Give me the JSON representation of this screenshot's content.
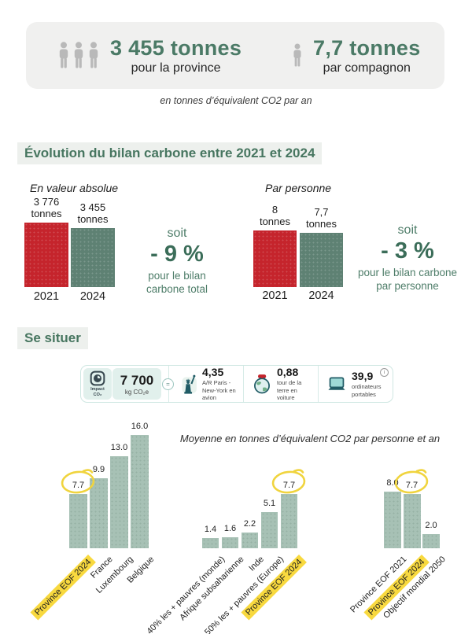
{
  "banner": {
    "province": {
      "icon": "person-group-icon",
      "value": "3 455 tonnes",
      "caption": "pour la province"
    },
    "companion": {
      "icon": "person-icon",
      "value": "7,7 tonnes",
      "caption": "par compagnon"
    }
  },
  "unit_note": "en tonnes d’équivalent CO2 par an",
  "section_titles": {
    "evolution": "Évolution du bilan carbone entre 2021 et 2024",
    "situer": "Se situer"
  },
  "impact_card": {
    "logo": {
      "icon": "impact-co2-logo",
      "lines": [
        "Impact",
        "CO₂"
      ]
    },
    "total": {
      "number": "7 700",
      "unit": "kg CO₂e"
    },
    "equals": "=",
    "items": [
      {
        "icon": "statue-of-liberty-icon",
        "number": "4,35",
        "caption": "A/R Paris - New-York en avion"
      },
      {
        "icon": "earth-car-icon",
        "number": "0,88",
        "caption": "tour de la terre en voiture"
      },
      {
        "icon": "laptop-icon",
        "number": "39,9",
        "caption": "ordinateurs portables"
      }
    ],
    "info_icon": "i"
  },
  "average_note": "Moyenne en tonnes d’équivalent CO2 par personne et an",
  "chart_data": [
    {
      "type": "bar",
      "title": "En valeur absolue",
      "categories": [
        "2021",
        "2024"
      ],
      "values": [
        3776,
        3455
      ],
      "value_labels": [
        [
          "3 776",
          "tonnes"
        ],
        [
          "3 455",
          "tonnes"
        ]
      ],
      "bar_colors": [
        "#c5242c",
        "#5e8173"
      ],
      "annotation": {
        "soit": "soit",
        "pct": "- 9 %",
        "caption": "pour le bilan carbone total"
      }
    },
    {
      "type": "bar",
      "title": "Par personne",
      "categories": [
        "2021",
        "2024"
      ],
      "values": [
        8,
        7.7
      ],
      "value_labels": [
        [
          "8",
          "tonnes"
        ],
        [
          "7,7",
          "tonnes"
        ]
      ],
      "bar_colors": [
        "#c5242c",
        "#5e8173"
      ],
      "annotation": {
        "soit": "soit",
        "pct": "- 3 %",
        "caption": "pour le bilan carbone par personne"
      }
    },
    {
      "type": "bar",
      "categories": [
        "Province EOF 2024",
        "France",
        "Luxembourg",
        "Belgique"
      ],
      "values": [
        7.7,
        9.9,
        13.0,
        16.0
      ],
      "value_labels": [
        "7.7",
        "9.9",
        "13.0",
        "16.0"
      ],
      "bar_color": "#a7c1b5",
      "highlight_index": 0
    },
    {
      "type": "bar",
      "categories": [
        "40% les + pauvres (monde)",
        "Afrique subsaharienne",
        "Inde",
        "50% les + pauvres (Europe)",
        "Province EOF 2024"
      ],
      "values": [
        1.4,
        1.6,
        2.2,
        5.1,
        7.7
      ],
      "value_labels": [
        "1.4",
        "1.6",
        "2.2",
        "5.1",
        "7.7"
      ],
      "bar_color": "#a7c1b5",
      "highlight_index": 4
    },
    {
      "type": "bar",
      "categories": [
        "Province EOF 2021",
        "Province EOF 2024",
        "Objectif mondial 2050"
      ],
      "values": [
        8.0,
        7.7,
        2.0
      ],
      "value_labels": [
        "8.0",
        "7.7",
        "2.0"
      ],
      "bar_color": "#a7c1b5",
      "highlight_index": 1
    }
  ],
  "colors": {
    "red": "#c5242c",
    "green_bar": "#5e8173",
    "green_text": "#4e7d69",
    "green_dark_text": "#3b6d59",
    "sage": "#a7c1b5",
    "yellow_highlight": "#f8d93f",
    "yellow_circle": "#f0d43e",
    "banner_bg": "#f0f0ef",
    "section_bg": "#edf0ed"
  }
}
